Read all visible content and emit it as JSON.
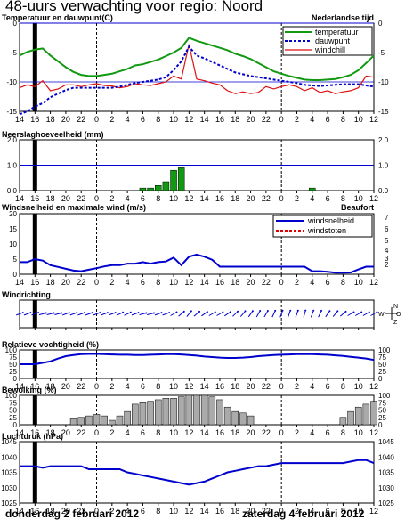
{
  "page_title": "48-uurs verwachting voor regio: Noord",
  "day_labels": {
    "left": "donderdag 2 februari 2012",
    "right": "zaterdag 4 februari 2012"
  },
  "time_axis_labels": [
    "14",
    "16",
    "18",
    "20",
    "22",
    "0",
    "2",
    "4",
    "6",
    "8",
    "10",
    "12",
    "14",
    "16",
    "18",
    "20",
    "22",
    "0",
    "2",
    "4",
    "6",
    "8",
    "10",
    "12"
  ],
  "colors": {
    "temperature": "#119911",
    "dewpoint": "#0000cc",
    "windchill": "#dd1111",
    "wind": "#0000cc",
    "gusts": "#dd0000",
    "cloud": "#aaaaaa",
    "now_marker": "#000000"
  },
  "compass": {
    "n": "N",
    "w": "W",
    "o": "O",
    "z": "Z"
  },
  "beaufort_ticks": [
    "2",
    "3",
    "4",
    "5",
    "6",
    "7"
  ],
  "chart_data": [
    {
      "type": "line",
      "title": "Temperatuur en dauwpunt(C)",
      "annotation": "Nederlandse tijd",
      "x": [
        14,
        15,
        16,
        17,
        18,
        19,
        20,
        21,
        22,
        23,
        0,
        1,
        2,
        3,
        4,
        5,
        6,
        7,
        8,
        9,
        10,
        11,
        12,
        13,
        14,
        15,
        16,
        17,
        18,
        19,
        20,
        21,
        22,
        23,
        0,
        1,
        2,
        3,
        4,
        5,
        6,
        7,
        8,
        9,
        10,
        11,
        12
      ],
      "ylim": [
        -15,
        0
      ],
      "yticks": [
        "0",
        "-5",
        "-10",
        "-15"
      ],
      "series": [
        {
          "name": "temperatuur",
          "values": [
            -5.5,
            -4.9,
            -4.5,
            -4.3,
            -5.5,
            -6.5,
            -7.5,
            -8.3,
            -8.8,
            -9,
            -9,
            -8.8,
            -8.6,
            -8.2,
            -7.8,
            -7.2,
            -7,
            -6.6,
            -6.2,
            -5.6,
            -5,
            -4.2,
            -2.5,
            -3,
            -3.4,
            -3.8,
            -4.2,
            -4.6,
            -5.2,
            -5.6,
            -6.1,
            -6.8,
            -7.5,
            -8.2,
            -8.6,
            -9,
            -9.3,
            -9.6,
            -9.7,
            -9.7,
            -9.6,
            -9.5,
            -9.2,
            -8.8,
            -8,
            -6.8,
            -5.5
          ]
        },
        {
          "name": "dauwpunt",
          "values": [
            -15.5,
            -15,
            -14.2,
            -13.6,
            -12.6,
            -12,
            -11.4,
            -11,
            -11,
            -11,
            -11,
            -11,
            -11,
            -10.8,
            -10.5,
            -10.2,
            -10,
            -9.8,
            -9.6,
            -9.2,
            -8,
            -6.5,
            -4,
            -5.5,
            -6,
            -6.6,
            -7.2,
            -7.8,
            -8.4,
            -8.7,
            -9,
            -9.2,
            -9.4,
            -9.6,
            -9.8,
            -10,
            -10.2,
            -10.5,
            -10.6,
            -10.7,
            -10.6,
            -10.5,
            -10.4,
            -10.4,
            -10.4,
            -10.6,
            -10.8
          ]
        },
        {
          "name": "windchill",
          "values": [
            -11,
            -10.5,
            -10.8,
            -9.8,
            -11.5,
            -11.2,
            -10.5,
            -10.5,
            -10.8,
            -10.5,
            -10.3,
            -10.6,
            -10.7,
            -11,
            -10.8,
            -10.3,
            -10.5,
            -10.6,
            -10.3,
            -10,
            -9,
            -9.5,
            -3.6,
            -9.5,
            -9.8,
            -10.2,
            -10.5,
            -11.5,
            -12,
            -11.7,
            -12,
            -11.8,
            -10.8,
            -11.2,
            -10.8,
            -10.5,
            -10.8,
            -11.5,
            -11,
            -11.8,
            -11.5,
            -12,
            -11.7,
            -11.5,
            -11,
            -9,
            -9.2
          ]
        }
      ],
      "now_x": 16
    },
    {
      "type": "bar",
      "title": "Neerslaghoeveelheid (mm)",
      "ylim": [
        0,
        2
      ],
      "yticks": [
        "2.0",
        "1.0",
        "0.0"
      ],
      "reference_line": 1.0,
      "categories": [
        6,
        7,
        8,
        9,
        10,
        11,
        4
      ],
      "bars": [
        {
          "x": 6,
          "value": 0.1
        },
        {
          "x": 7,
          "value": 0.1
        },
        {
          "x": 8,
          "value": 0.2
        },
        {
          "x": 9,
          "value": 0.35
        },
        {
          "x": 10,
          "value": 0.8
        },
        {
          "x": 11,
          "value": 0.9
        },
        {
          "x": 28.5,
          "value": 0.1
        }
      ]
    },
    {
      "type": "line",
      "title": "Windsnelheid en maximale wind (m/s)",
      "annotation": "Beaufort",
      "ylim": [
        0,
        20
      ],
      "yticks": [
        "20",
        "15",
        "10",
        "5",
        "0"
      ],
      "series": [
        {
          "name": "windsnelheid",
          "values": [
            4,
            4,
            5,
            4.5,
            3,
            2.4,
            1.8,
            1.2,
            1,
            1.5,
            2,
            2.6,
            3,
            3,
            3.5,
            3.5,
            4,
            3.5,
            4,
            4.2,
            5.5,
            3,
            5.8,
            6.5,
            5.8,
            4.8,
            2.5,
            2.5,
            2.5,
            2.5,
            2.5,
            2.5,
            2.5,
            2.5,
            2.5,
            2.5,
            2.5,
            2.5,
            1,
            1,
            0.8,
            0.5,
            0.5,
            0.6,
            1.6,
            2.5,
            2.5
          ]
        },
        {
          "name": "windstoten",
          "values": []
        }
      ]
    },
    {
      "type": "table",
      "title": "Windrichting",
      "directions_deg": [
        250,
        250,
        250,
        255,
        255,
        255,
        250,
        250,
        250,
        250,
        250,
        250,
        250,
        245,
        245,
        250,
        255,
        255,
        250,
        250,
        240,
        230,
        220,
        230,
        235,
        240,
        240,
        235,
        225,
        220,
        215,
        210,
        210,
        205,
        200,
        200,
        200,
        195,
        200,
        205,
        215,
        220,
        230,
        240,
        240,
        240,
        240
      ]
    },
    {
      "type": "line",
      "title": "Relatieve vochtigheid (%)",
      "ylim": [
        0,
        100
      ],
      "yticks": [
        "100",
        "75",
        "50",
        "25",
        "0"
      ],
      "series": [
        {
          "name": "vochtigheid",
          "values": [
            50,
            50,
            50,
            55,
            60,
            70,
            78,
            82,
            85,
            86,
            86,
            85,
            84,
            83,
            83,
            82,
            82,
            83,
            84,
            85,
            85,
            84,
            82,
            80,
            77,
            75,
            73,
            72,
            72,
            73,
            75,
            78,
            80,
            82,
            83,
            84,
            85,
            85,
            85,
            84,
            83,
            81,
            79,
            76,
            73,
            70,
            65
          ]
        }
      ]
    },
    {
      "type": "bar",
      "title": "Bewolking (%)",
      "ylim": [
        0,
        100
      ],
      "yticks": [
        "100",
        "75",
        "50",
        "25",
        "0"
      ],
      "values": [
        0,
        0,
        0,
        0,
        0,
        0,
        0,
        20,
        25,
        30,
        35,
        30,
        15,
        30,
        45,
        70,
        75,
        80,
        85,
        90,
        90,
        95,
        100,
        100,
        100,
        95,
        85,
        60,
        45,
        40,
        30,
        0,
        0,
        0,
        0,
        0,
        0,
        0,
        0,
        0,
        0,
        0,
        25,
        45,
        60,
        70,
        80,
        65
      ]
    },
    {
      "type": "line",
      "title": "Luchtdruk (hPa)",
      "ylim": [
        1025,
        1045
      ],
      "yticks": [
        "1045",
        "1040",
        "1035",
        "1030",
        "1025"
      ],
      "series": [
        {
          "name": "luchtdruk",
          "values": [
            1037,
            1037,
            1037,
            1036.5,
            1037,
            1037,
            1037,
            1037,
            1037,
            1036,
            1036,
            1036,
            1036,
            1036,
            1035,
            1034.5,
            1034,
            1033.5,
            1033,
            1032.5,
            1032,
            1031.5,
            1031,
            1031.5,
            1032,
            1033,
            1034,
            1035,
            1035.5,
            1036,
            1036.5,
            1037,
            1037,
            1037.5,
            1038,
            1038,
            1038,
            1038,
            1038,
            1038,
            1038,
            1038,
            1038,
            1038.5,
            1039,
            1039,
            1038
          ]
        }
      ]
    }
  ]
}
